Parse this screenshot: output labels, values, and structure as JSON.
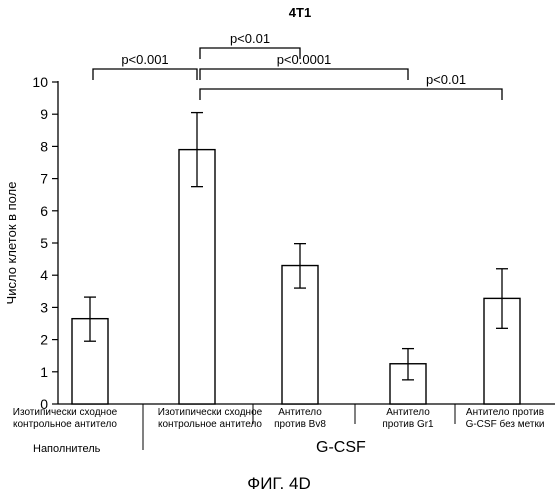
{
  "chart_data": {
    "type": "bar",
    "title": "4T1",
    "ylabel": "Число клеток в поле",
    "xlabel": "",
    "ylim": [
      0,
      10
    ],
    "yticks": [
      0,
      1,
      2,
      3,
      4,
      5,
      6,
      7,
      8,
      9,
      10
    ],
    "categories": [
      "Изотипически сходное\nконтрольное антитело",
      "Изотипически сходное\nконтрольное антитело",
      "Антитело\nпротив Bv8",
      "Антитело\nпротив Gr1",
      "Антитело против\nG-CSF без метки"
    ],
    "values": [
      2.65,
      7.9,
      4.3,
      1.25,
      3.28
    ],
    "error_low": [
      1.95,
      6.75,
      3.6,
      0.75,
      2.35
    ],
    "error_high": [
      3.32,
      9.05,
      4.98,
      1.72,
      4.2
    ],
    "group_labels": {
      "vehicle": "Наполнитель",
      "gcsf": "G-CSF"
    },
    "significance": [
      {
        "from": 0,
        "to": 1,
        "label": "p<0.001"
      },
      {
        "from": 1,
        "to": 2,
        "label": "p<0.01"
      },
      {
        "from": 1,
        "to": 3,
        "label": "p<0.0001"
      },
      {
        "from": 1,
        "to": 4,
        "label": "p<0.01"
      }
    ],
    "grid": false,
    "legend": "none"
  },
  "caption": "ФИГ. 4D"
}
